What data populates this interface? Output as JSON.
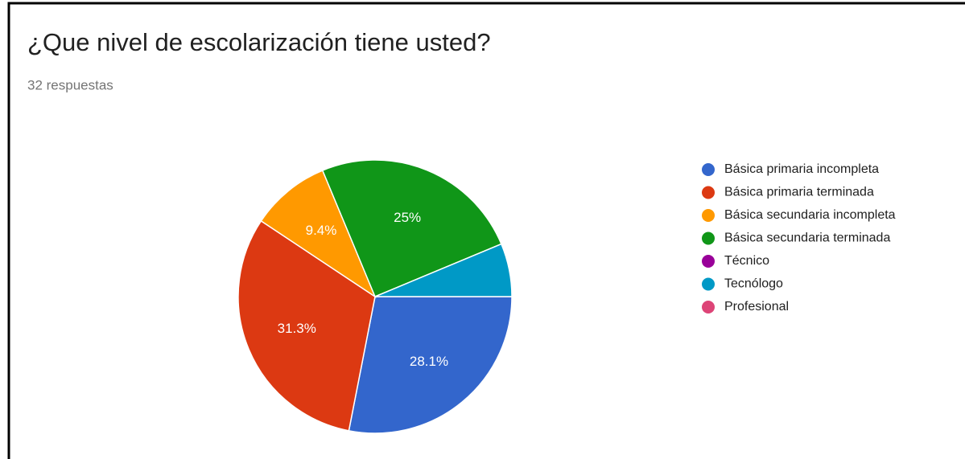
{
  "chart_data": {
    "type": "pie",
    "title": "¿Que nivel de escolarización tiene usted?",
    "subtitle": "32 respuestas",
    "categories": [
      "Básica primaria incompleta",
      "Básica primaria terminada",
      "Básica secundaria incompleta",
      "Básica secundaria terminada",
      "Técnico",
      "Tecnólogo",
      "Profesional"
    ],
    "values": [
      28.1,
      31.3,
      9.4,
      25,
      0,
      6.3,
      0
    ],
    "value_labels": [
      "28.1%",
      "31.3%",
      "9.4%",
      "25%",
      null,
      null,
      null
    ],
    "colors": [
      "#3366cc",
      "#dc3912",
      "#ff9900",
      "#109618",
      "#990099",
      "#0099c6",
      "#dd4477"
    ],
    "legend": "right"
  }
}
